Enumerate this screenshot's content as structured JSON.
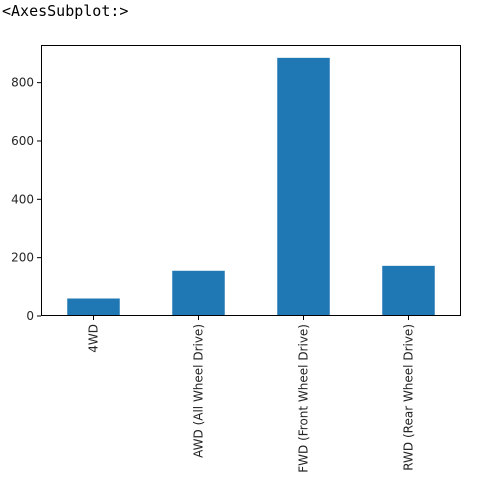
{
  "output_repr": "<AxesSubplot:>",
  "chart_data": {
    "type": "bar",
    "categories": [
      "4WD",
      "AWD (All Wheel Drive)",
      "FWD (Front Wheel Drive)",
      "RWD (Rear Wheel Drive)"
    ],
    "values": [
      60,
      155,
      885,
      172
    ],
    "title": "",
    "xlabel": "",
    "ylabel": "",
    "ylim": [
      0,
      929
    ],
    "yticks": [
      0,
      200,
      400,
      600,
      800
    ],
    "grid": false,
    "bar_color": "#1f77b4",
    "x_tick_rotation": 90
  }
}
